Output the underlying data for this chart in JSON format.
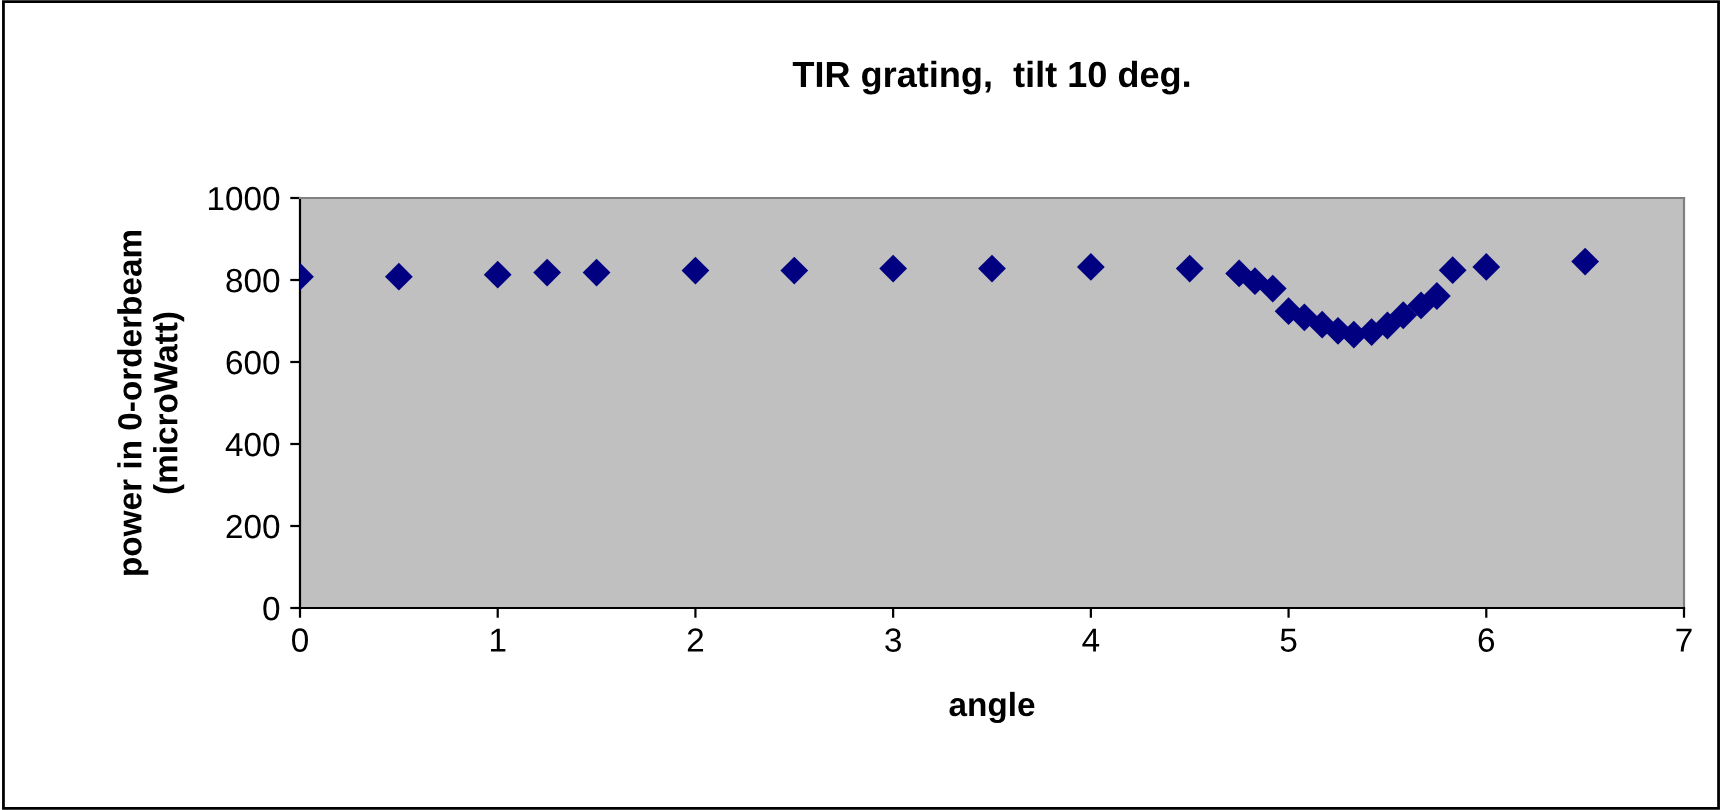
{
  "chart_data": {
    "type": "scatter",
    "title": "TIR grating,  tilt 10 deg.",
    "xlabel": "angle",
    "ylabel": "power in 0-orderbeam\n(microWatt)",
    "x": [
      0,
      0.5,
      1,
      1.25,
      1.5,
      2,
      2.5,
      3,
      3.5,
      4,
      4.5,
      4.75,
      4.83,
      4.92,
      5.0,
      5.08,
      5.17,
      5.25,
      5.33,
      5.42,
      5.5,
      5.58,
      5.67,
      5.75,
      5.83,
      6.0,
      6.5
    ],
    "series": [
      {
        "color": "#000080",
        "values": [
          808,
          808,
          813,
          818,
          818,
          823,
          823,
          828,
          828,
          832,
          828,
          816,
          797,
          779,
          724,
          709,
          691,
          676,
          667,
          673,
          689,
          714,
          738,
          761,
          824,
          832,
          845
        ]
      }
    ],
    "marker": "diamond",
    "xlim": [
      0,
      7
    ],
    "xticks": [
      0,
      1,
      2,
      3,
      4,
      5,
      6,
      7
    ],
    "ylim": [
      0,
      1000
    ],
    "yticks": [
      0,
      200,
      400,
      600,
      800,
      1000
    ],
    "grid": false,
    "legend": false
  }
}
